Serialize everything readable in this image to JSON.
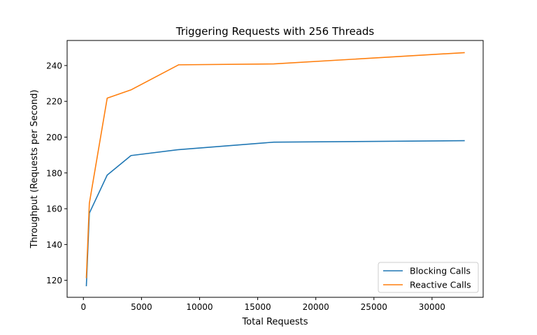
{
  "chart_data": {
    "type": "line",
    "title": "Triggering Requests with 256 Threads",
    "xlabel": "Total Requests",
    "ylabel": "Throughput (Requests per Second)",
    "xlim": [
      -1400,
      34400
    ],
    "ylim": [
      110.5,
      254
    ],
    "xticks": [
      0,
      5000,
      10000,
      15000,
      20000,
      25000,
      30000
    ],
    "yticks": [
      120,
      140,
      160,
      180,
      200,
      220,
      240
    ],
    "grid": false,
    "legend_position": "lower-right",
    "series": [
      {
        "name": "Blocking Calls",
        "color": "#1f77b4",
        "x": [
          256,
          512,
          2048,
          4096,
          8192,
          16384,
          32768
        ],
        "y": [
          117,
          157.5,
          178.8,
          189.7,
          193.0,
          197.2,
          198.0
        ]
      },
      {
        "name": "Reactive Calls",
        "color": "#ff7f0e",
        "x": [
          256,
          512,
          2048,
          4096,
          8192,
          16384,
          32768
        ],
        "y": [
          121.5,
          163,
          221.8,
          226.4,
          240.4,
          240.9,
          247.2
        ]
      }
    ]
  }
}
